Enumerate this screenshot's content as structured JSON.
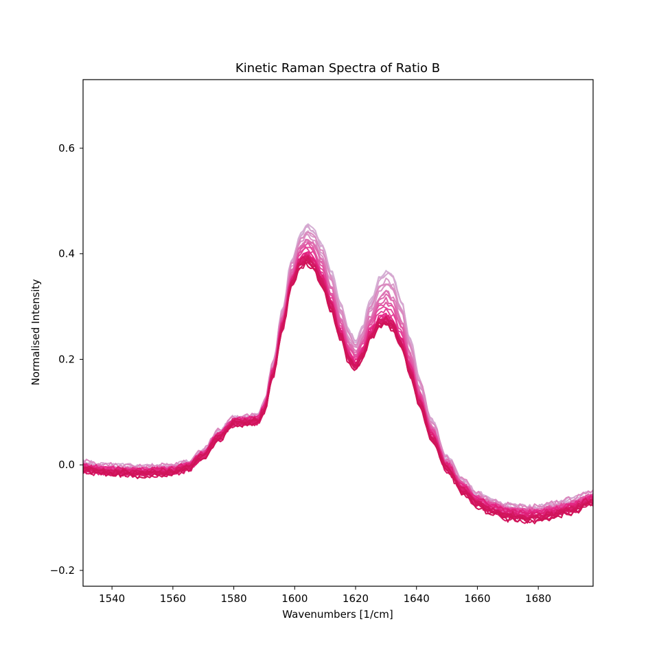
{
  "chart_data": {
    "type": "line",
    "title": "Kinetic Raman Spectra of Ratio B",
    "xlabel": "Wavenumbers [1/cm]",
    "ylabel": "Normalised Intensity",
    "xlim": [
      1530.5,
      1698
    ],
    "ylim": [
      -0.23,
      0.73
    ],
    "xticks": [
      1540,
      1560,
      1580,
      1600,
      1620,
      1640,
      1660,
      1680
    ],
    "yticks": [
      -0.2,
      0.0,
      0.2,
      0.4,
      0.6
    ],
    "ytick_labels": [
      "−0.2",
      "0.0",
      "0.2",
      "0.4",
      "0.6"
    ],
    "grid": false,
    "legend": "none",
    "colormap": {
      "light": "#d4b9da",
      "mid": "#e7298a",
      "dark": "#ce1256"
    },
    "n_series": 30,
    "profile": {
      "x": [
        1530,
        1540,
        1550,
        1560,
        1565,
        1570,
        1575,
        1580,
        1585,
        1588,
        1590,
        1593,
        1596,
        1599,
        1602,
        1604,
        1606,
        1609,
        1612,
        1615,
        1618,
        1620,
        1622,
        1625,
        1628,
        1630,
        1632,
        1635,
        1638,
        1641,
        1645,
        1650,
        1655,
        1660,
        1665,
        1670,
        1675,
        1680,
        1685,
        1690,
        1698
      ],
      "base": [
        -0.005,
        -0.01,
        -0.012,
        -0.01,
        -0.002,
        0.02,
        0.055,
        0.082,
        0.085,
        0.087,
        0.11,
        0.18,
        0.27,
        0.35,
        0.395,
        0.405,
        0.395,
        0.36,
        0.31,
        0.255,
        0.21,
        0.195,
        0.215,
        0.255,
        0.28,
        0.285,
        0.275,
        0.24,
        0.185,
        0.125,
        0.06,
        0.0,
        -0.04,
        -0.065,
        -0.078,
        -0.087,
        -0.09,
        -0.09,
        -0.085,
        -0.078,
        -0.062
      ],
      "late": [
        -0.01,
        -0.015,
        -0.018,
        -0.015,
        -0.006,
        0.016,
        0.05,
        0.078,
        0.08,
        0.08,
        0.1,
        0.17,
        0.26,
        0.34,
        0.375,
        0.38,
        0.372,
        0.34,
        0.292,
        0.24,
        0.195,
        0.18,
        0.2,
        0.24,
        0.262,
        0.268,
        0.258,
        0.225,
        0.17,
        0.112,
        0.048,
        -0.01,
        -0.05,
        -0.078,
        -0.092,
        -0.102,
        -0.106,
        -0.104,
        -0.098,
        -0.09,
        -0.072
      ],
      "early": [
        0.005,
        -0.002,
        -0.004,
        -0.002,
        0.004,
        0.026,
        0.062,
        0.088,
        0.09,
        0.092,
        0.118,
        0.195,
        0.295,
        0.39,
        0.44,
        0.455,
        0.45,
        0.42,
        0.37,
        0.31,
        0.255,
        0.235,
        0.262,
        0.315,
        0.358,
        0.375,
        0.365,
        0.315,
        0.24,
        0.165,
        0.085,
        0.015,
        -0.028,
        -0.055,
        -0.068,
        -0.076,
        -0.08,
        -0.08,
        -0.074,
        -0.066,
        -0.052
      ]
    }
  }
}
